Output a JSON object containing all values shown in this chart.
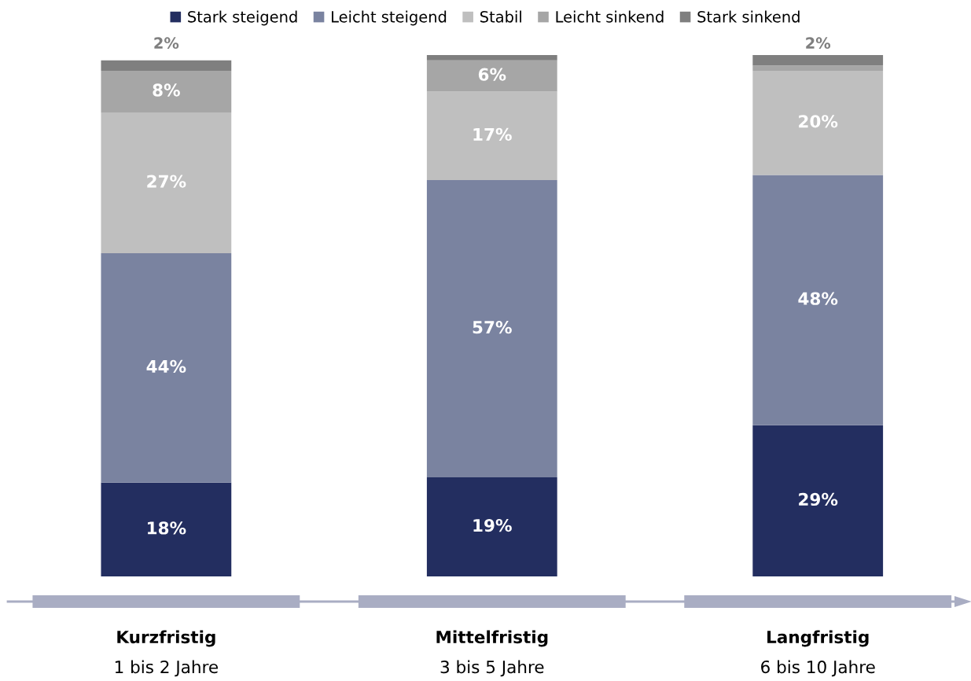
{
  "chart_data": {
    "type": "bar",
    "stacked": true,
    "legend": "top",
    "categories": [
      "Kurzfristig\n1 bis 2 Jahre",
      "Mittelfristig\n3 bis 5 Jahre",
      "Langfristig\n6 bis 10 Jahre"
    ],
    "series": [
      {
        "name": "Stark steigend",
        "color": "#232e60",
        "values": [
          18,
          19,
          29
        ],
        "value_labels": [
          "18%",
          "19%",
          "29%"
        ]
      },
      {
        "name": "Leicht steigend",
        "color": "#7a83a0",
        "values": [
          44,
          57,
          48
        ],
        "value_labels": [
          "44%",
          "57%",
          "48%"
        ]
      },
      {
        "name": "Stabil",
        "color": "#bfbfbf",
        "values": [
          27,
          17,
          20
        ],
        "value_labels": [
          "27%",
          "17%",
          "20%"
        ]
      },
      {
        "name": "Leicht sinkend",
        "color": "#a6a6a6",
        "values": [
          8,
          6,
          1
        ],
        "value_labels": [
          "8%",
          "6%",
          null
        ]
      },
      {
        "name": "Stark sinkend",
        "color": "#7f7f7f",
        "values": [
          2,
          1,
          2
        ],
        "value_labels": [
          "2%",
          null,
          "2%"
        ]
      }
    ]
  }
}
